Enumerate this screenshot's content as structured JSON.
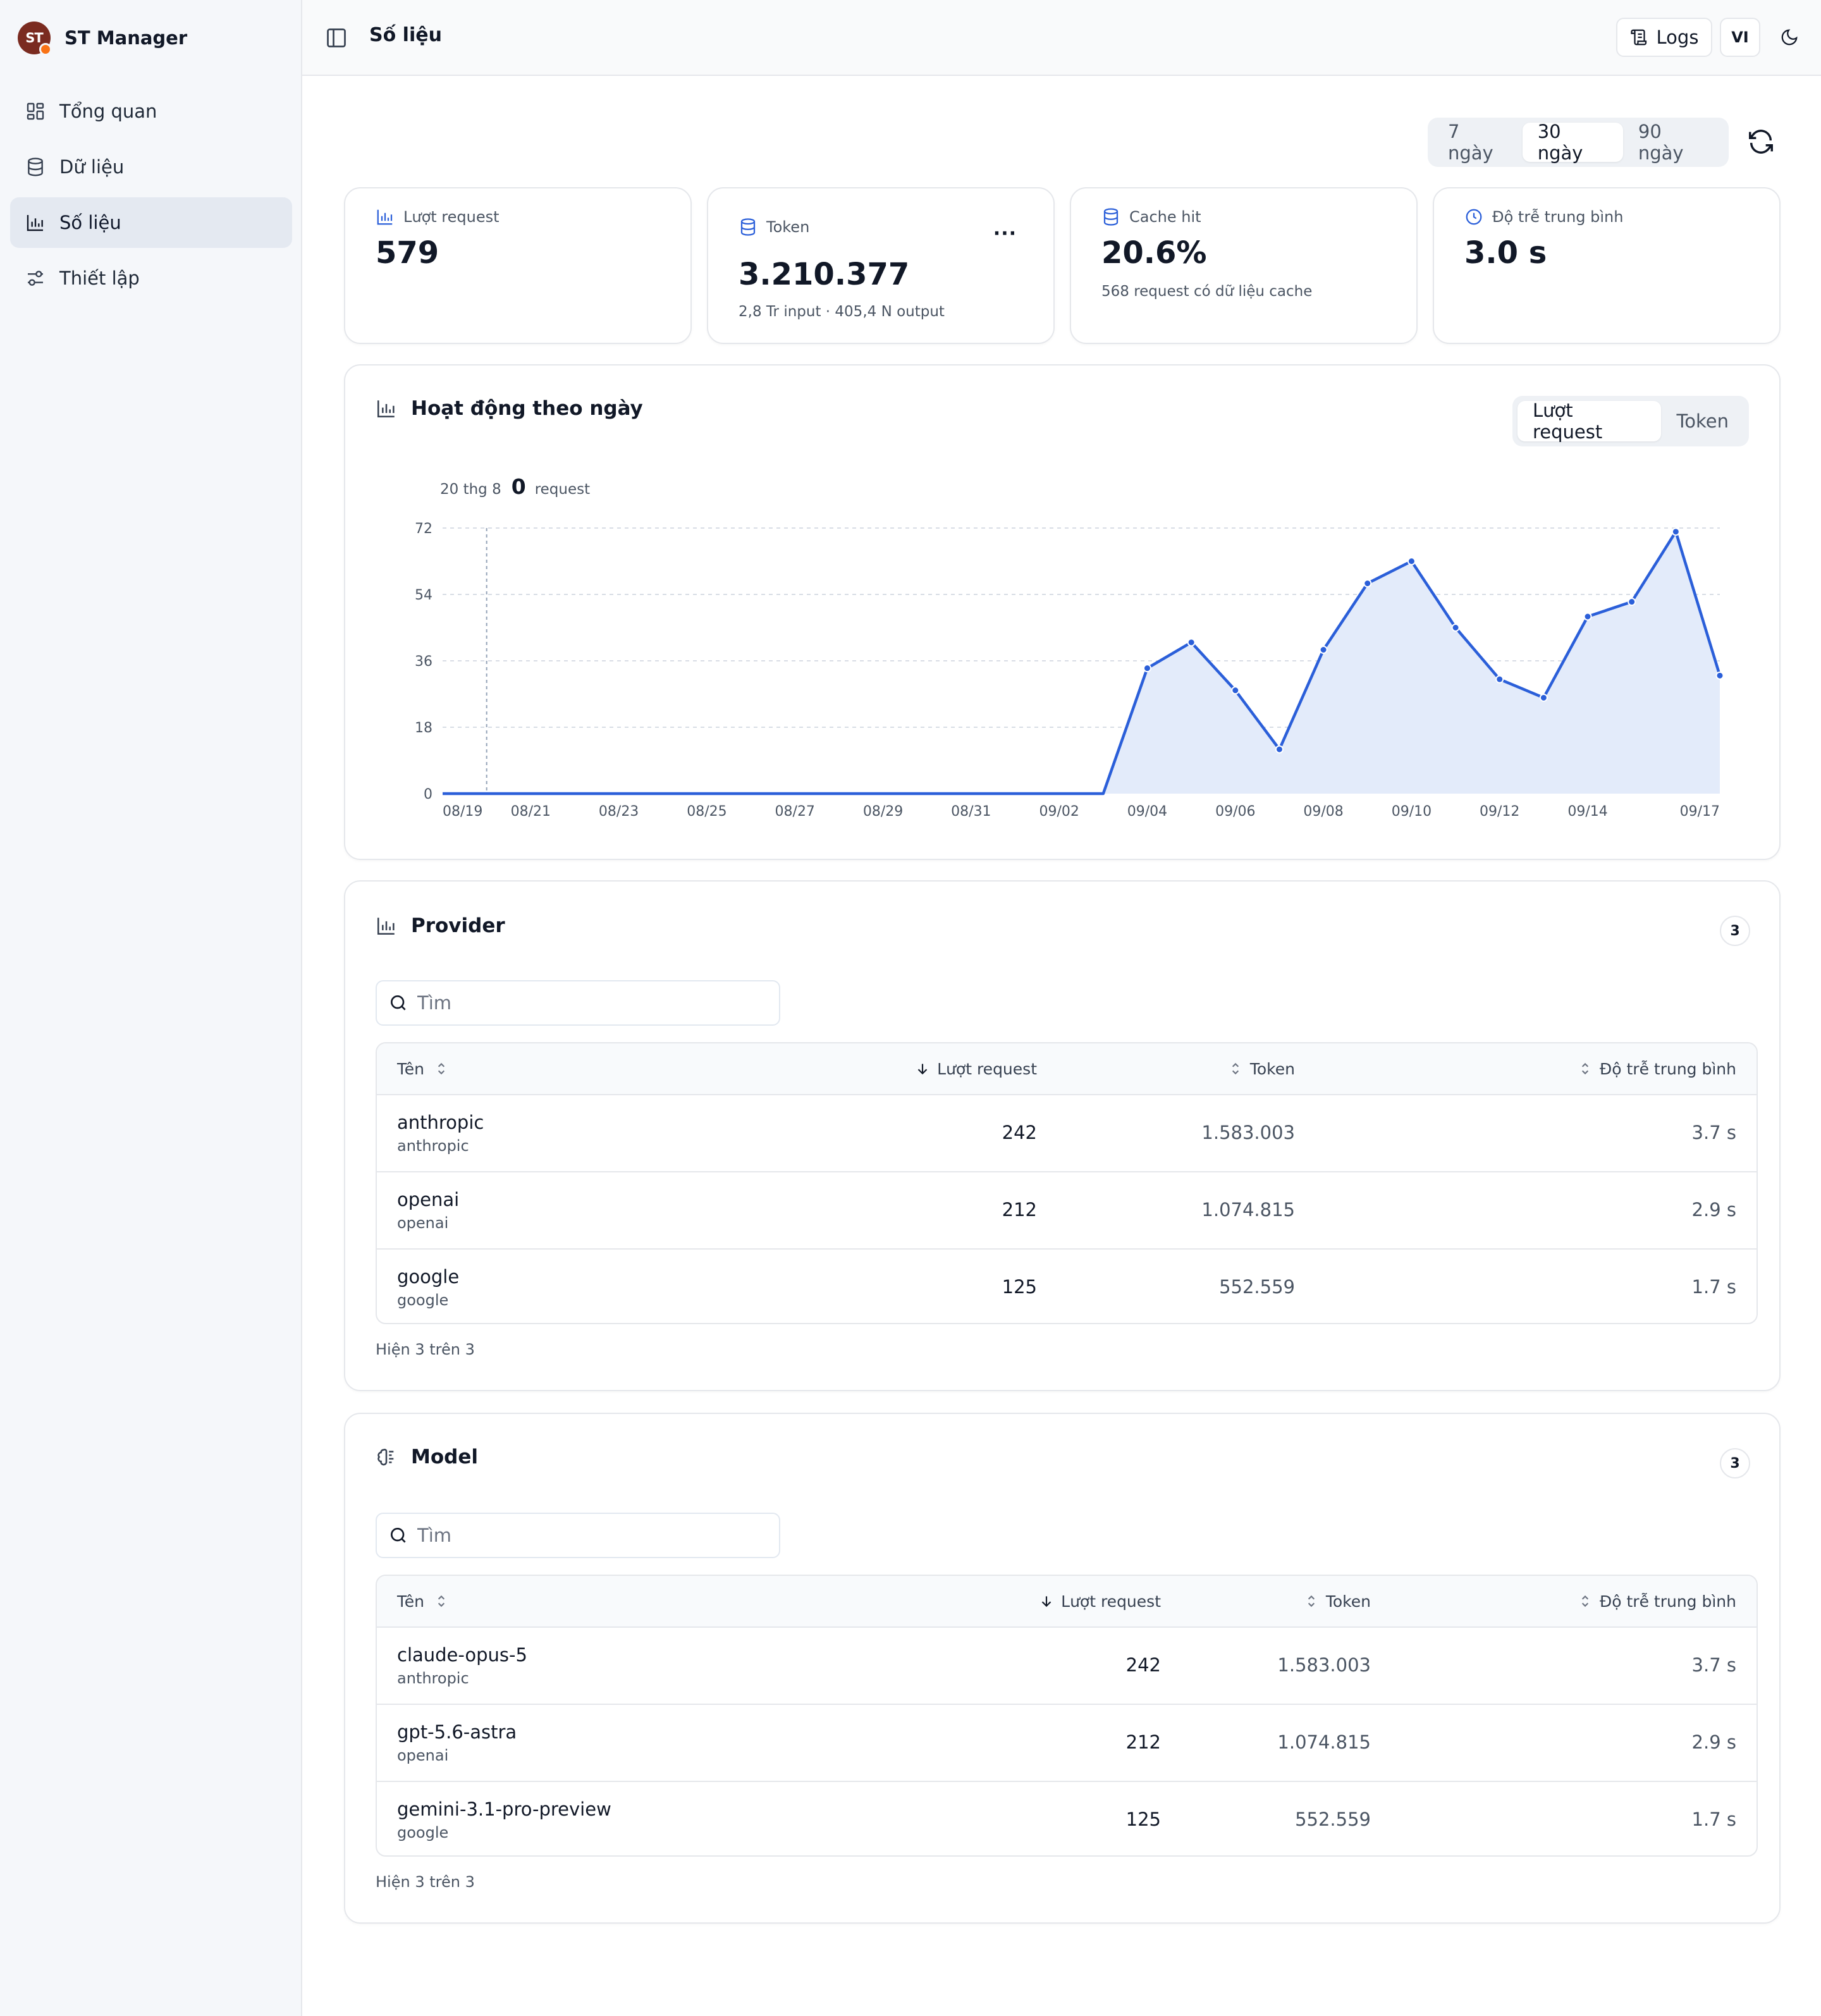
{
  "app": {
    "name": "ST Manager",
    "logo_text": "ST"
  },
  "sidebar": {
    "items": [
      {
        "label": "Tổng quan",
        "icon": "dashboard-icon"
      },
      {
        "label": "Dữ liệu",
        "icon": "database-icon"
      },
      {
        "label": "Số liệu",
        "icon": "bar-chart-icon",
        "active": true
      },
      {
        "label": "Thiết lập",
        "icon": "settings-sliders-icon"
      }
    ]
  },
  "header": {
    "title": "Số liệu",
    "logs_label": "Logs",
    "lang_label": "VI"
  },
  "range": {
    "options": [
      "7 ngày",
      "30 ngày",
      "90 ngày"
    ],
    "selected": "30 ngày"
  },
  "stats": {
    "requests": {
      "label": "Lượt request",
      "value": "579"
    },
    "tokens": {
      "label": "Token",
      "value": "3.210.377",
      "sub": "2,8 Tr input · 405,4 N output",
      "more": "···"
    },
    "cache": {
      "label": "Cache hit",
      "value": "20.6%",
      "sub": "568 request có dữ liệu cache"
    },
    "latency": {
      "label": "Độ trễ trung bình",
      "value": "3.0 s"
    }
  },
  "activity": {
    "title": "Hoạt động theo ngày",
    "toggle": [
      "Lượt request",
      "Token"
    ],
    "toggle_selected": "Lượt request",
    "hover": {
      "date": "20 thg 8",
      "value": "0",
      "unit": "request"
    }
  },
  "chart_data": {
    "type": "area",
    "x": [
      "08/19",
      "08/20",
      "08/21",
      "08/22",
      "08/23",
      "08/24",
      "08/25",
      "08/26",
      "08/27",
      "08/28",
      "08/29",
      "08/30",
      "08/31",
      "09/01",
      "09/02",
      "09/03",
      "09/04",
      "09/05",
      "09/06",
      "09/07",
      "09/08",
      "09/09",
      "09/10",
      "09/11",
      "09/12",
      "09/13",
      "09/14",
      "09/15",
      "09/16",
      "09/17"
    ],
    "series": [
      {
        "values": [
          0,
          0,
          0,
          0,
          0,
          0,
          0,
          0,
          0,
          0,
          0,
          0,
          0,
          0,
          0,
          0,
          34,
          41,
          28,
          12,
          39,
          57,
          63,
          45,
          31,
          26,
          48,
          52,
          71,
          32
        ]
      }
    ],
    "x_tick_labels": [
      "08/19",
      "08/21",
      "08/23",
      "08/25",
      "08/27",
      "08/29",
      "08/31",
      "09/02",
      "09/04",
      "09/06",
      "09/08",
      "09/10",
      "09/12",
      "09/14",
      "09/17"
    ],
    "y_ticks": [
      "0",
      "18",
      "36",
      "54",
      "72"
    ],
    "ylim": [
      0,
      72
    ],
    "grid": true,
    "color": "#2b5fd9",
    "fill": "#e3ebfa"
  },
  "provider": {
    "title": "Provider",
    "count": "3",
    "search_placeholder": "Tìm",
    "columns": [
      "Tên",
      "Lượt request",
      "Token",
      "Độ trễ trung bình"
    ],
    "rows": [
      {
        "name": "anthropic",
        "sub": "anthropic",
        "requests": "242",
        "tokens": "1.583.003",
        "latency": "3.7 s"
      },
      {
        "name": "openai",
        "sub": "openai",
        "requests": "212",
        "tokens": "1.074.815",
        "latency": "2.9 s"
      },
      {
        "name": "google",
        "sub": "google",
        "requests": "125",
        "tokens": "552.559",
        "latency": "1.7 s"
      }
    ],
    "footer": "Hiện 3 trên 3"
  },
  "model": {
    "title": "Model",
    "count": "3",
    "search_placeholder": "Tìm",
    "columns": [
      "Tên",
      "Lượt request",
      "Token",
      "Độ trễ trung bình"
    ],
    "rows": [
      {
        "name": "claude-opus-5",
        "sub": "anthropic",
        "requests": "242",
        "tokens": "1.583.003",
        "latency": "3.7 s"
      },
      {
        "name": "gpt-5.6-astra",
        "sub": "openai",
        "requests": "212",
        "tokens": "1.074.815",
        "latency": "2.9 s"
      },
      {
        "name": "gemini-3.1-pro-preview",
        "sub": "google",
        "requests": "125",
        "tokens": "552.559",
        "latency": "1.7 s"
      }
    ],
    "footer": "Hiện 3 trên 3"
  }
}
